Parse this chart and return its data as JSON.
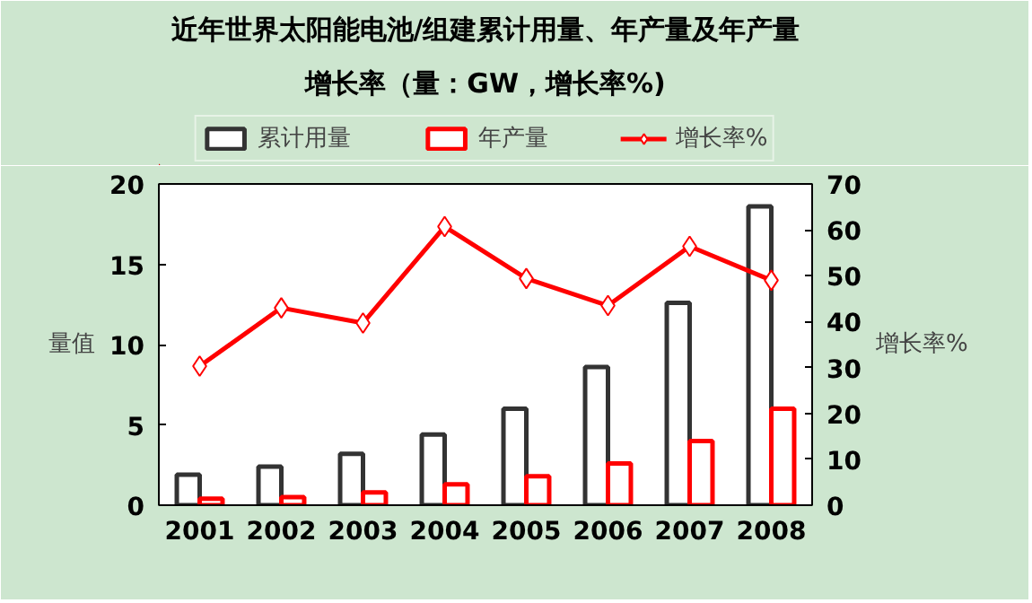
{
  "chart_data": {
    "type": "bar",
    "title": "近年世界太阳能电池/组建累计用量、年产量及年产量",
    "subtitle": "增长率（量：GW，增长率%)",
    "ylabel": "量值",
    "y2label": "增长率%",
    "categories": [
      "2001",
      "2002",
      "2003",
      "2004",
      "2005",
      "2006",
      "2007",
      "2008"
    ],
    "series": [
      {
        "name": "累计用量",
        "color": "#333333",
        "values": [
          1.9,
          2.4,
          3.2,
          4.4,
          6.0,
          8.6,
          12.6,
          18.6
        ]
      },
      {
        "name": "年产量",
        "color": "#ff0000",
        "values": [
          0.4,
          0.5,
          0.8,
          1.3,
          1.8,
          2.6,
          4.0,
          6.0
        ]
      },
      {
        "name": "增长率%",
        "type": "line",
        "axis": "y2",
        "color": "#ff0000",
        "marker": "diamond",
        "values": [
          30.3,
          43,
          39.7,
          60.7,
          49.4,
          43.5,
          56.4,
          49
        ]
      }
    ],
    "ylim": [
      0,
      20
    ],
    "yticks": [
      0,
      5,
      10,
      15,
      20
    ],
    "y2lim": [
      0,
      70
    ],
    "y2ticks": [
      0,
      10,
      20,
      30,
      40,
      50,
      60,
      70
    ],
    "grid": false,
    "legend": "top"
  }
}
